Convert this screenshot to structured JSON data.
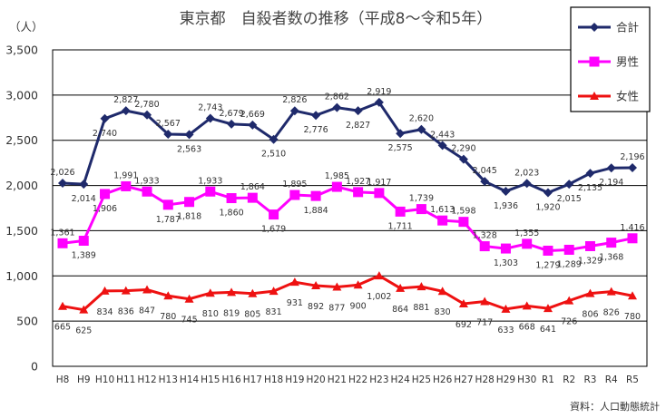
{
  "chart_data": {
    "type": "line",
    "title": "東京都　自殺者数の推移（平成8～令和5年）",
    "ylabel": "（人）",
    "source": "資料：人口動態統計",
    "ylim": [
      0,
      3500
    ],
    "yticks": [
      0,
      500,
      1000,
      1500,
      2000,
      2500,
      3000,
      3500
    ],
    "ytick_labels": [
      "0",
      "500",
      "1,000",
      "1,500",
      "2,000",
      "2,500",
      "3,000",
      "3,500"
    ],
    "grid": true,
    "legend_position": "top-right",
    "categories": [
      "H8",
      "H9",
      "H10",
      "H11",
      "H12",
      "H13",
      "H14",
      "H15",
      "H16",
      "H17",
      "H18",
      "H19",
      "H20",
      "H21",
      "H22",
      "H23",
      "H24",
      "H25",
      "H26",
      "H27",
      "H28",
      "H29",
      "H30",
      "R1",
      "R2",
      "R3",
      "R4",
      "R5"
    ],
    "series": [
      {
        "name": "合計",
        "color": "#1f2a6b",
        "marker": "diamond",
        "values": [
          2026,
          2014,
          2740,
          2827,
          2780,
          2567,
          2563,
          2743,
          2679,
          2669,
          2510,
          2826,
          2776,
          2862,
          2827,
          2919,
          2575,
          2620,
          2443,
          2290,
          2045,
          1936,
          2023,
          1920,
          2015,
          2135,
          2194,
          2196
        ],
        "labels": [
          "2,026",
          "2,014",
          "2,740",
          "2,827",
          "2,780",
          "2,567",
          "2,563",
          "2,743",
          "2,679",
          "2,669",
          "2,510",
          "2,826",
          "2,776",
          "2,862",
          "2,827",
          "2,919",
          "2,575",
          "2,620",
          "2,443",
          "2,290",
          "2,045",
          "1,936",
          "2,023",
          "1,920",
          "2,015",
          "2,135",
          "2,194",
          "2,196"
        ]
      },
      {
        "name": "男性",
        "color": "#ff00ff",
        "marker": "square",
        "values": [
          1361,
          1389,
          1906,
          1991,
          1933,
          1787,
          1818,
          1933,
          1860,
          1864,
          1679,
          1895,
          1884,
          1985,
          1927,
          1917,
          1711,
          1739,
          1613,
          1598,
          1328,
          1303,
          1355,
          1279,
          1289,
          1329,
          1368,
          1416
        ],
        "labels": [
          "1,361",
          "1,389",
          "1,906",
          "1,991",
          "1,933",
          "1,787",
          "1,818",
          "1,933",
          "1,860",
          "1,864",
          "1,679",
          "1,895",
          "1,884",
          "1,985",
          "1,927",
          "1,917",
          "1,711",
          "1,739",
          "1,613",
          "1,598",
          "1,328",
          "1,303",
          "1,355",
          "1,279",
          "1,289",
          "1,329",
          "1,368",
          "1,416"
        ]
      },
      {
        "name": "女性",
        "color": "#ee1111",
        "marker": "triangle",
        "values": [
          665,
          625,
          834,
          836,
          847,
          780,
          745,
          810,
          819,
          805,
          831,
          931,
          892,
          877,
          900,
          1002,
          864,
          881,
          830,
          692,
          717,
          633,
          668,
          641,
          726,
          806,
          826,
          780
        ],
        "labels": [
          "665",
          "625",
          "834",
          "836",
          "847",
          "780",
          "745",
          "810",
          "819",
          "805",
          "831",
          "931",
          "892",
          "877",
          "900",
          "1,002",
          "864",
          "881",
          "830",
          "692",
          "717",
          "633",
          "668",
          "641",
          "726",
          "806",
          "826",
          "780"
        ]
      }
    ]
  }
}
